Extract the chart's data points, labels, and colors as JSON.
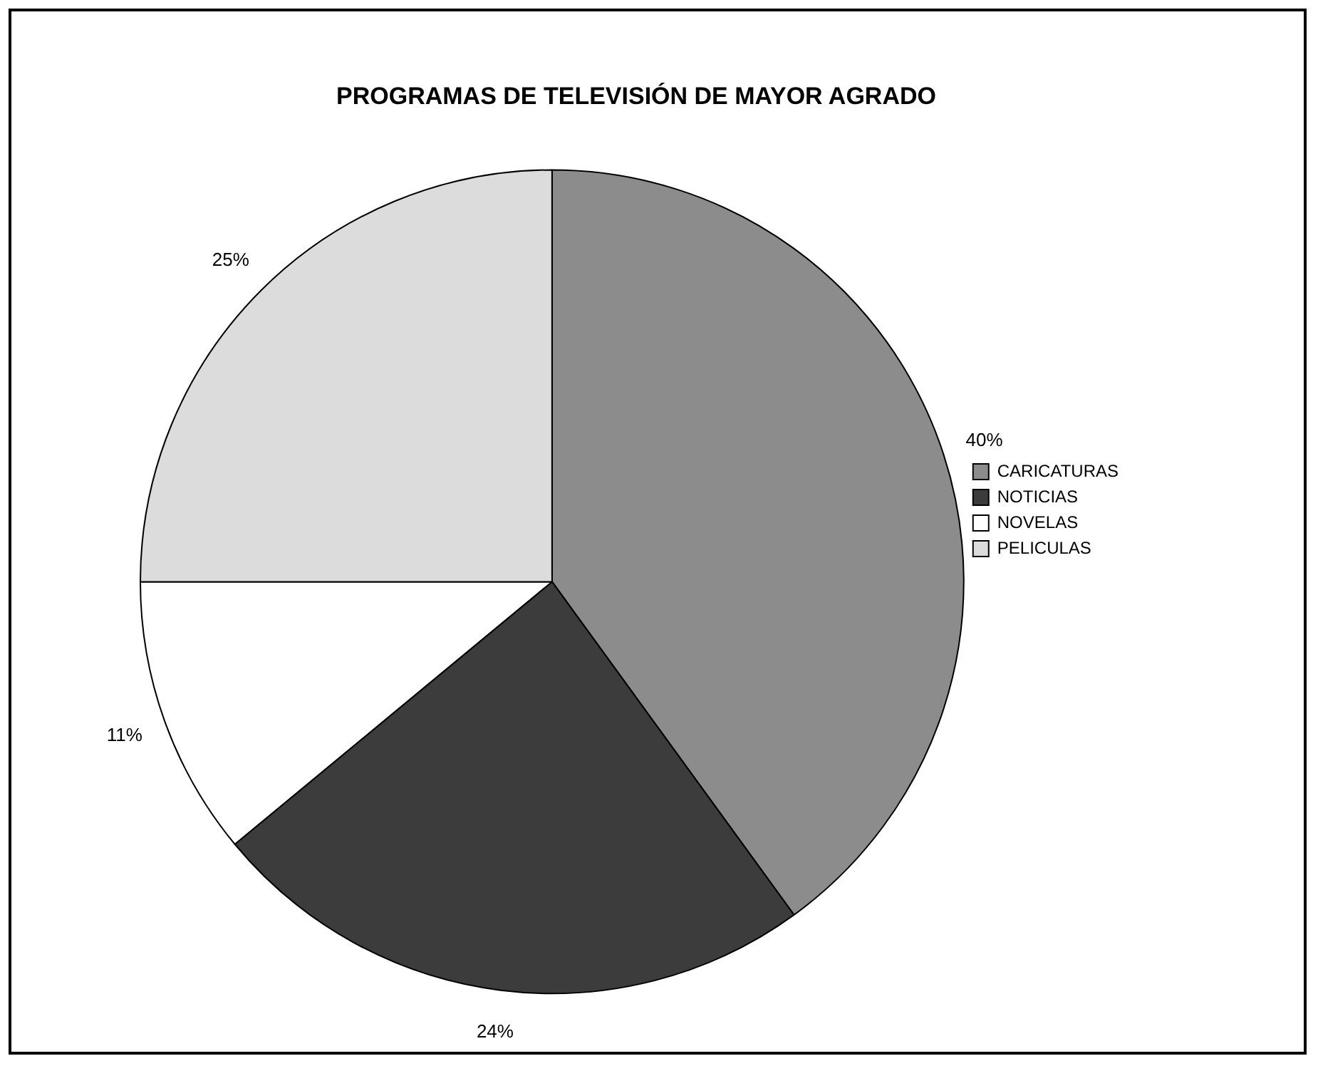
{
  "chart_data": {
    "type": "pie",
    "title": "PROGRAMAS DE TELEVISIÓN DE MAYOR AGRADO",
    "categories": [
      "CARICATURAS",
      "NOTICIAS",
      "NOVELAS",
      "PELICULAS"
    ],
    "values": [
      40,
      24,
      11,
      25
    ],
    "value_labels": [
      "40%",
      "24%",
      "11%",
      "25%"
    ],
    "colors": [
      "#8c8c8c",
      "#3c3c3c",
      "#ffffff",
      "#dcdcdc"
    ],
    "legend": "right"
  }
}
